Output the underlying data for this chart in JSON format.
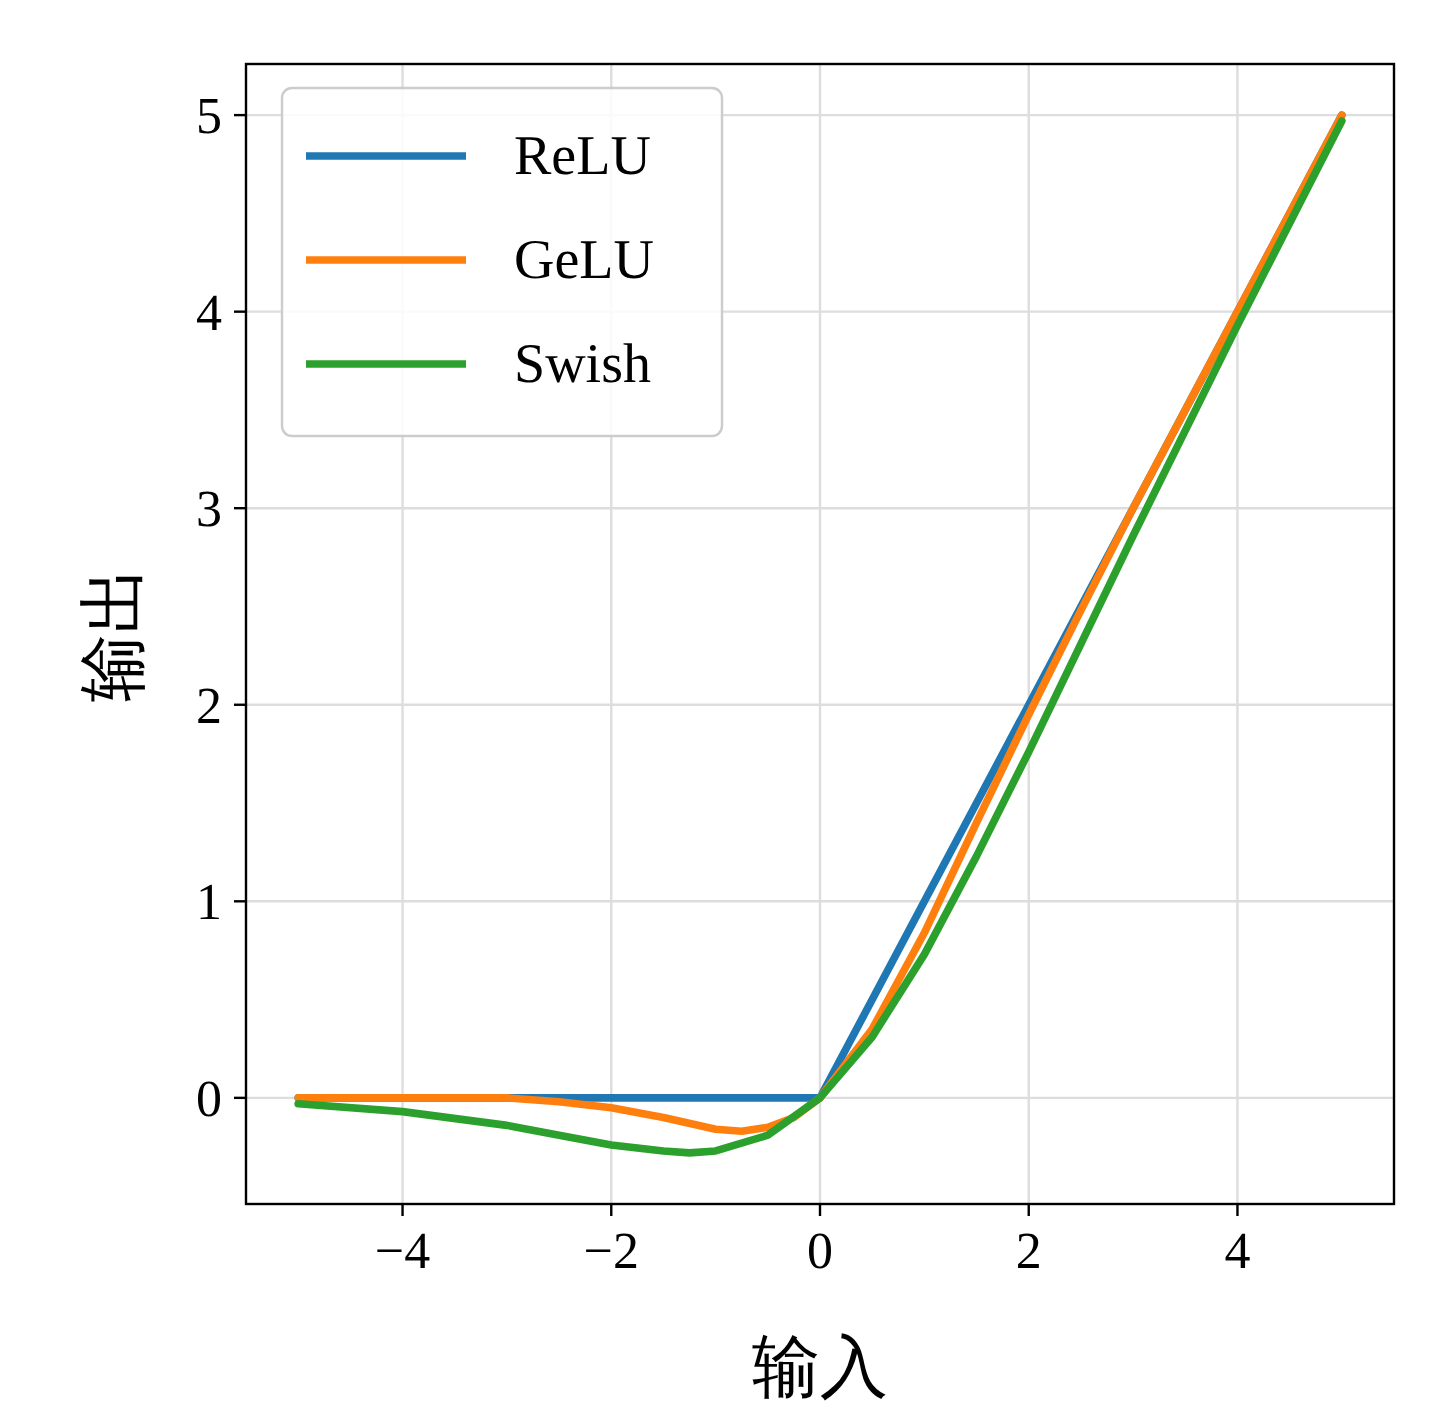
{
  "chart_data": {
    "type": "line",
    "xlabel": "输入",
    "ylabel": "输出",
    "xlim": [
      -5.5,
      5.5
    ],
    "ylim": [
      -0.54,
      5.26
    ],
    "xticks": [
      {
        "value": -4,
        "label": "−4"
      },
      {
        "value": -2,
        "label": "−2"
      },
      0,
      2,
      4
    ],
    "yticks": [
      0,
      1,
      2,
      3,
      4,
      5
    ],
    "grid": true,
    "legend": "top left",
    "series": [
      {
        "name": "ReLU",
        "color": "#1f77b4",
        "x": [
          -5,
          0,
          5
        ],
        "values": [
          0,
          0,
          5
        ]
      },
      {
        "name": "GeLU",
        "color": "#ff7f0e",
        "x": [
          -5,
          -4,
          -3,
          -2.5,
          -2,
          -1.5,
          -1,
          -0.75,
          -0.5,
          -0.25,
          0,
          0.5,
          1,
          1.5,
          2,
          2.5,
          3,
          4,
          5
        ],
        "values": [
          0,
          0,
          0,
          -0.02,
          -0.05,
          -0.1,
          -0.16,
          -0.17,
          -0.15,
          -0.1,
          0,
          0.35,
          0.84,
          1.4,
          1.95,
          2.48,
          3,
          4,
          5
        ]
      },
      {
        "name": "Swish",
        "color": "#2ca02c",
        "x": [
          -5,
          -4,
          -3,
          -2.5,
          -2,
          -1.5,
          -1.25,
          -1,
          -0.5,
          0,
          0.5,
          1,
          1.5,
          2,
          2.5,
          3,
          4,
          5
        ],
        "values": [
          -0.03,
          -0.07,
          -0.14,
          -0.19,
          -0.24,
          -0.27,
          -0.28,
          -0.27,
          -0.19,
          0,
          0.31,
          0.73,
          1.23,
          1.76,
          2.31,
          2.86,
          3.93,
          4.97
        ]
      }
    ]
  }
}
